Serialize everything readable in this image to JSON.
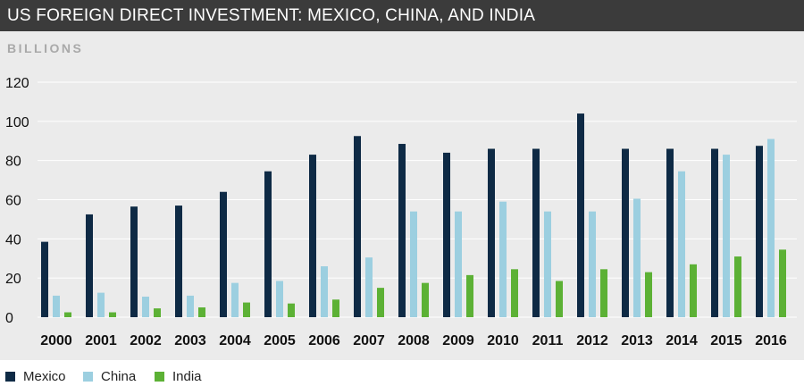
{
  "title": "US FOREIGN DIRECT INVESTMENT: MEXICO, CHINA, AND INDIA",
  "units_label": "BILLIONS",
  "colors": {
    "Mexico": "#0e2a45",
    "China": "#9ccfe0",
    "India": "#5cb135"
  },
  "legend": [
    {
      "name": "Mexico",
      "icon": "square-swatch"
    },
    {
      "name": "China",
      "icon": "square-swatch"
    },
    {
      "name": "India",
      "icon": "square-swatch"
    }
  ],
  "chart_data": {
    "type": "bar",
    "title": "US FOREIGN DIRECT INVESTMENT: MEXICO, CHINA, AND INDIA",
    "ylabel": "BILLIONS",
    "xlabel": "",
    "ylim": [
      0,
      120
    ],
    "yticks": [
      0,
      20,
      40,
      60,
      80,
      100,
      120
    ],
    "grid": true,
    "legend_position": "bottom-left",
    "categories": [
      "2000",
      "2001",
      "2002",
      "2003",
      "2004",
      "2005",
      "2006",
      "2007",
      "2008",
      "2009",
      "2010",
      "2011",
      "2012",
      "2013",
      "2014",
      "2015",
      "2016"
    ],
    "series": [
      {
        "name": "Mexico",
        "values": [
          38.5,
          52.5,
          56.5,
          57,
          64,
          74.5,
          83,
          92.5,
          88.5,
          84,
          86,
          86,
          104,
          86,
          86,
          86,
          87.5
        ]
      },
      {
        "name": "China",
        "values": [
          11,
          12.5,
          10.5,
          11,
          17.5,
          18.5,
          26,
          30.5,
          54,
          54,
          59,
          54,
          54,
          60.5,
          74.5,
          83,
          91
        ]
      },
      {
        "name": "India",
        "values": [
          2.5,
          2.5,
          4.5,
          5,
          7.5,
          7,
          9,
          15,
          17.5,
          21.5,
          24.5,
          18.5,
          24.5,
          23,
          27,
          31,
          34.5
        ]
      }
    ]
  }
}
